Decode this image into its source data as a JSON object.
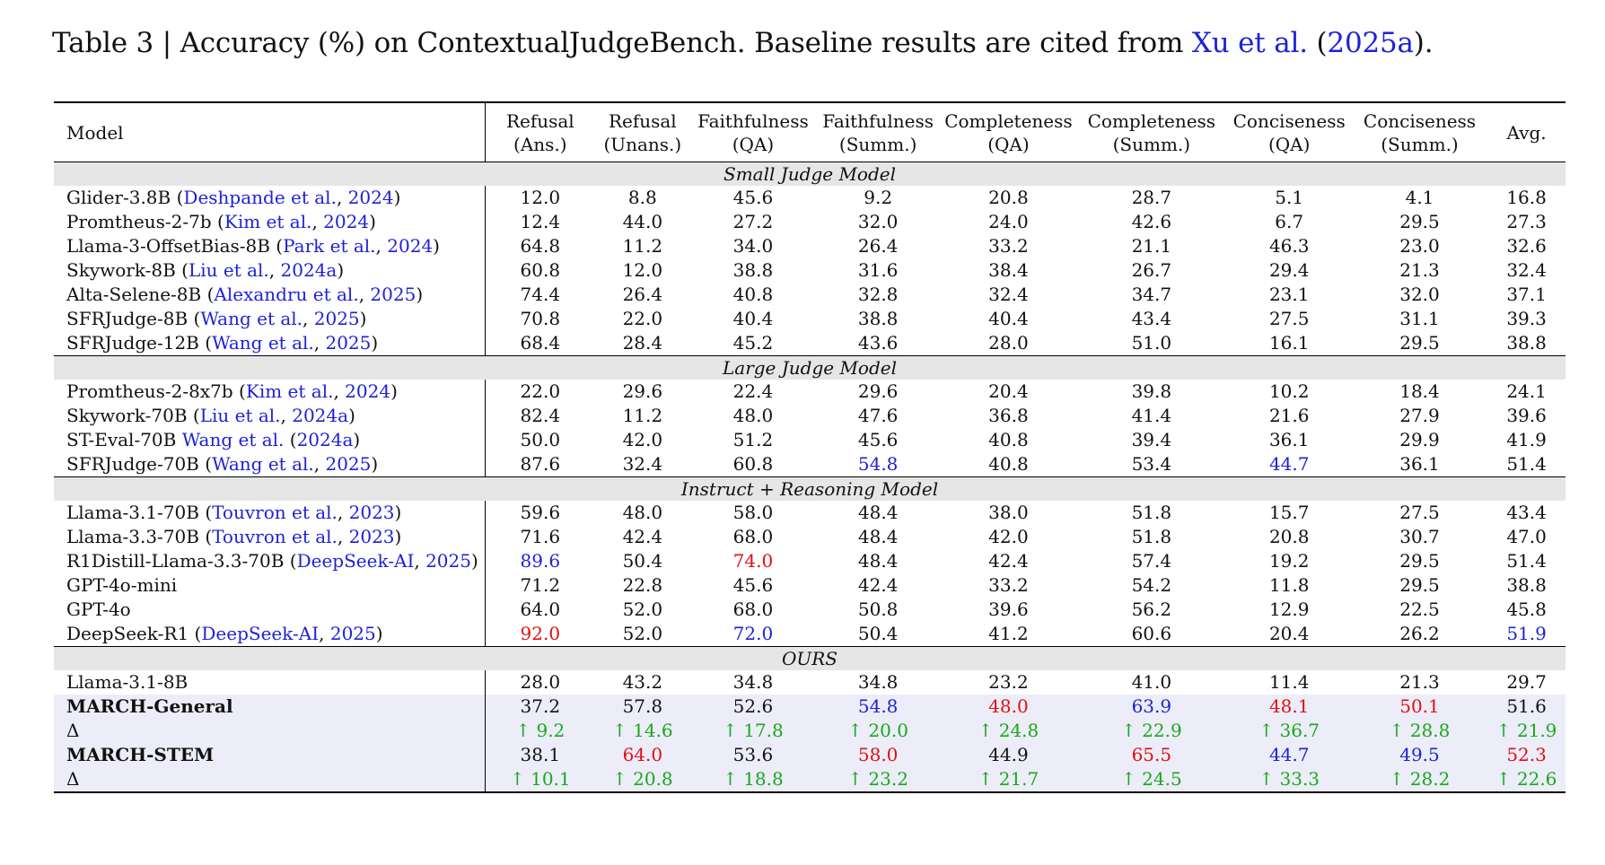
{
  "caption": {
    "prefix": "Table 3 | Accuracy (%) on ContextualJudgeBench. Baseline results are cited from ",
    "cite_name": "Xu et al.",
    "cite_open": " (",
    "cite_year": "2025a",
    "cite_close": ")."
  },
  "columns": [
    {
      "l1": "Model",
      "l2": ""
    },
    {
      "l1": "Refusal",
      "l2": "(Ans.)"
    },
    {
      "l1": "Refusal",
      "l2": "(Unans.)"
    },
    {
      "l1": "Faithfulness",
      "l2": "(QA)"
    },
    {
      "l1": "Faithfulness",
      "l2": "(Summ.)"
    },
    {
      "l1": "Completeness",
      "l2": "(QA)"
    },
    {
      "l1": "Completeness",
      "l2": "(Summ.)"
    },
    {
      "l1": "Conciseness",
      "l2": "(QA)"
    },
    {
      "l1": "Conciseness",
      "l2": "(Summ.)"
    },
    {
      "l1": "Avg.",
      "l2": ""
    }
  ],
  "sections": [
    {
      "title": "Small Judge Model",
      "rows": [
        {
          "model": "Glider-3.8B",
          "cite": "Deshpande et al.",
          "year": "2024",
          "values": [
            "12.0",
            "8.8",
            "45.6",
            "9.2",
            "20.8",
            "28.7",
            "5.1",
            "4.1",
            "16.8"
          ],
          "colors": [
            "",
            "",
            "",
            "",
            "",
            "",
            "",
            "",
            ""
          ]
        },
        {
          "model": "Promtheus-2-7b",
          "cite": "Kim et al.",
          "year": "2024",
          "values": [
            "12.4",
            "44.0",
            "27.2",
            "32.0",
            "24.0",
            "42.6",
            "6.7",
            "29.5",
            "27.3"
          ],
          "colors": [
            "",
            "",
            "",
            "",
            "",
            "",
            "",
            "",
            ""
          ]
        },
        {
          "model": "Llama-3-OffsetBias-8B",
          "cite": "Park et al.",
          "year": "2024",
          "values": [
            "64.8",
            "11.2",
            "34.0",
            "26.4",
            "33.2",
            "21.1",
            "46.3",
            "23.0",
            "32.6"
          ],
          "colors": [
            "",
            "",
            "",
            "",
            "",
            "",
            "",
            "",
            ""
          ]
        },
        {
          "model": "Skywork-8B",
          "cite": "Liu et al.",
          "year": "2024a",
          "values": [
            "60.8",
            "12.0",
            "38.8",
            "31.6",
            "38.4",
            "26.7",
            "29.4",
            "21.3",
            "32.4"
          ],
          "colors": [
            "",
            "",
            "",
            "",
            "",
            "",
            "",
            "",
            ""
          ]
        },
        {
          "model": "Alta-Selene-8B",
          "cite": "Alexandru et al.",
          "year": "2025",
          "values": [
            "74.4",
            "26.4",
            "40.8",
            "32.8",
            "32.4",
            "34.7",
            "23.1",
            "32.0",
            "37.1"
          ],
          "colors": [
            "",
            "",
            "",
            "",
            "",
            "",
            "",
            "",
            ""
          ]
        },
        {
          "model": "SFRJudge-8B",
          "cite": "Wang et al.",
          "year": "2025",
          "values": [
            "70.8",
            "22.0",
            "40.4",
            "38.8",
            "40.4",
            "43.4",
            "27.5",
            "31.1",
            "39.3"
          ],
          "colors": [
            "",
            "",
            "",
            "",
            "",
            "",
            "",
            "",
            ""
          ]
        },
        {
          "model": "SFRJudge-12B",
          "cite": "Wang et al.",
          "year": "2025",
          "values": [
            "68.4",
            "28.4",
            "45.2",
            "43.6",
            "28.0",
            "51.0",
            "16.1",
            "29.5",
            "38.8"
          ],
          "colors": [
            "",
            "",
            "",
            "",
            "",
            "",
            "",
            "",
            ""
          ]
        }
      ]
    },
    {
      "title": "Large Judge Model",
      "rows": [
        {
          "model": "Promtheus-2-8x7b",
          "cite": "Kim et al.",
          "year": "2024",
          "values": [
            "22.0",
            "29.6",
            "22.4",
            "29.6",
            "20.4",
            "39.8",
            "10.2",
            "18.4",
            "24.1"
          ],
          "colors": [
            "",
            "",
            "",
            "",
            "",
            "",
            "",
            "",
            ""
          ]
        },
        {
          "model": "Skywork-70B",
          "cite": "Liu et al.",
          "year": "2024a",
          "values": [
            "82.4",
            "11.2",
            "48.0",
            "47.6",
            "36.8",
            "41.4",
            "21.6",
            "27.9",
            "39.6"
          ],
          "colors": [
            "",
            "",
            "",
            "",
            "",
            "",
            "",
            "",
            ""
          ]
        },
        {
          "model": "ST-Eval-70B",
          "cite": "Wang et al.",
          "year": "2024a",
          "citeStyle": "textual",
          "values": [
            "50.0",
            "42.0",
            "51.2",
            "45.6",
            "40.8",
            "39.4",
            "36.1",
            "29.9",
            "41.9"
          ],
          "colors": [
            "",
            "",
            "",
            "",
            "",
            "",
            "",
            "",
            ""
          ]
        },
        {
          "model": "SFRJudge-70B",
          "cite": "Wang et al.",
          "year": "2025",
          "values": [
            "87.6",
            "32.4",
            "60.8",
            "54.8",
            "40.8",
            "53.4",
            "44.7",
            "36.1",
            "51.4"
          ],
          "colors": [
            "",
            "",
            "",
            "blue",
            "",
            "",
            "blue",
            "",
            ""
          ]
        }
      ]
    },
    {
      "title": "Instruct + Reasoning Model",
      "rows": [
        {
          "model": "Llama-3.1-70B",
          "cite": "Touvron et al.",
          "year": "2023",
          "values": [
            "59.6",
            "48.0",
            "58.0",
            "48.4",
            "38.0",
            "51.8",
            "15.7",
            "27.5",
            "43.4"
          ],
          "colors": [
            "",
            "",
            "",
            "",
            "",
            "",
            "",
            "",
            ""
          ]
        },
        {
          "model": "Llama-3.3-70B",
          "cite": "Touvron et al.",
          "year": "2023",
          "values": [
            "71.6",
            "42.4",
            "68.0",
            "48.4",
            "42.0",
            "51.8",
            "20.8",
            "30.7",
            "47.0"
          ],
          "colors": [
            "",
            "",
            "",
            "",
            "",
            "",
            "",
            "",
            ""
          ]
        },
        {
          "model": "R1Distill-Llama-3.3-70B",
          "cite": "DeepSeek-AI",
          "year": "2025",
          "values": [
            "89.6",
            "50.4",
            "74.0",
            "48.4",
            "42.4",
            "57.4",
            "19.2",
            "29.5",
            "51.4"
          ],
          "colors": [
            "blue",
            "",
            "red",
            "",
            "",
            "",
            "",
            "",
            ""
          ]
        },
        {
          "model": "GPT-4o-mini",
          "cite": "",
          "year": "",
          "values": [
            "71.2",
            "22.8",
            "45.6",
            "42.4",
            "33.2",
            "54.2",
            "11.8",
            "29.5",
            "38.8"
          ],
          "colors": [
            "",
            "",
            "",
            "",
            "",
            "",
            "",
            "",
            ""
          ]
        },
        {
          "model": "GPT-4o",
          "cite": "",
          "year": "",
          "values": [
            "64.0",
            "52.0",
            "68.0",
            "50.8",
            "39.6",
            "56.2",
            "12.9",
            "22.5",
            "45.8"
          ],
          "colors": [
            "",
            "",
            "",
            "",
            "",
            "",
            "",
            "",
            ""
          ]
        },
        {
          "model": "DeepSeek-R1",
          "cite": "DeepSeek-AI",
          "year": "2025",
          "values": [
            "92.0",
            "52.0",
            "72.0",
            "50.4",
            "41.2",
            "60.6",
            "20.4",
            "26.2",
            "51.9"
          ],
          "colors": [
            "red",
            "",
            "blue",
            "",
            "",
            "",
            "",
            "",
            "blue"
          ]
        }
      ]
    },
    {
      "title": "OURS",
      "rows": [
        {
          "model": "Llama-3.1-8B",
          "cite": "",
          "year": "",
          "values": [
            "28.0",
            "43.2",
            "34.8",
            "34.8",
            "23.2",
            "41.0",
            "11.4",
            "21.3",
            "29.7"
          ],
          "colors": [
            "",
            "",
            "",
            "",
            "",
            "",
            "",
            "",
            ""
          ]
        },
        {
          "model": "MARCH-General",
          "bold": true,
          "highlight": true,
          "cite": "",
          "year": "",
          "values": [
            "37.2",
            "57.8",
            "52.6",
            "54.8",
            "48.0",
            "63.9",
            "48.1",
            "50.1",
            "51.6"
          ],
          "colors": [
            "",
            "",
            "",
            "blue",
            "red",
            "blue",
            "red",
            "red",
            ""
          ]
        },
        {
          "model": "Δ",
          "highlight": true,
          "cite": "",
          "year": "",
          "values": [
            "↑ 9.2",
            "↑ 14.6",
            "↑ 17.8",
            "↑ 20.0",
            "↑ 24.8",
            "↑ 22.9",
            "↑ 36.7",
            "↑ 28.8",
            "↑ 21.9"
          ],
          "colors": [
            "green",
            "green",
            "green",
            "green",
            "green",
            "green",
            "green",
            "green",
            "green"
          ]
        },
        {
          "model": "MARCH-STEM",
          "bold": true,
          "highlight": true,
          "cite": "",
          "year": "",
          "values": [
            "38.1",
            "64.0",
            "53.6",
            "58.0",
            "44.9",
            "65.5",
            "44.7",
            "49.5",
            "52.3"
          ],
          "colors": [
            "",
            "red",
            "",
            "red",
            "",
            "red",
            "blue",
            "blue",
            "red"
          ]
        },
        {
          "model": "Δ",
          "highlight": true,
          "cite": "",
          "year": "",
          "values": [
            "↑ 10.1",
            "↑ 20.8",
            "↑ 18.8",
            "↑ 23.2",
            "↑ 21.7",
            "↑ 24.5",
            "↑ 33.3",
            "↑ 28.2",
            "↑ 22.6"
          ],
          "colors": [
            "green",
            "green",
            "green",
            "green",
            "green",
            "green",
            "green",
            "green",
            "green"
          ]
        }
      ]
    }
  ]
}
